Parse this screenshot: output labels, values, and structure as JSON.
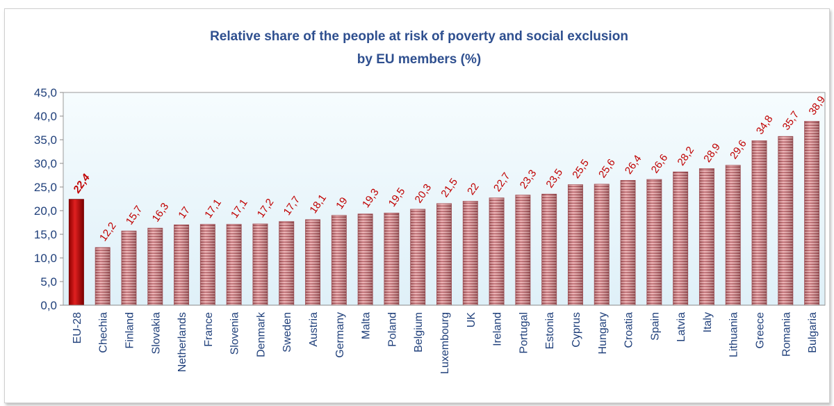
{
  "chart_data": {
    "type": "bar",
    "title_lines": [
      "Relative share of the people at risk of poverty and social exclusion",
      "by EU members (%)"
    ],
    "categories": [
      "EU-28",
      "Chechia",
      "Finland",
      "Slovakia",
      "Netherlands",
      "France",
      "Slovenia",
      "Denmark",
      "Sweden",
      "Austria",
      "Germany",
      "Malta",
      "Poland",
      "Belgium",
      "Luxembourg",
      "UK",
      "Ireland",
      "Portugal",
      "Estonia",
      "Cyprus",
      "Hungary",
      "Croatia",
      "Spain",
      "Latvia",
      "Italy",
      "Lithuania",
      "Greece",
      "Romania",
      "Bulgaria"
    ],
    "values": [
      22.4,
      12.2,
      15.7,
      16.3,
      17,
      17.1,
      17.1,
      17.2,
      17.7,
      18.1,
      19,
      19.3,
      19.5,
      20.3,
      21.5,
      22,
      22.7,
      23.3,
      23.5,
      25.5,
      25.6,
      26.4,
      26.6,
      28.2,
      28.9,
      29.6,
      34.8,
      35.7,
      38.9
    ],
    "data_labels": [
      "22,4",
      "12,2",
      "15,7",
      "16,3",
      "17",
      "17,1",
      "17,1",
      "17,2",
      "17,7",
      "18,1",
      "19",
      "19,3",
      "19,5",
      "20,3",
      "21,5",
      "22",
      "22,7",
      "23,3",
      "23,5",
      "25,5",
      "25,6",
      "26,4",
      "26,6",
      "28,2",
      "28,9",
      "29,6",
      "34,8",
      "35,7",
      "38,9"
    ],
    "highlight_category": "EU-28",
    "yticks": [
      "0,0",
      "5,0",
      "10,0",
      "15,0",
      "20,0",
      "25,0",
      "30,0",
      "35,0",
      "40,0",
      "45,0"
    ],
    "ylim": [
      0,
      45
    ],
    "ystep": 5,
    "grid": false,
    "legend": "none",
    "colors": {
      "bar": "#d9888c",
      "bar_stripe": "#a8434a",
      "highlight_bar": "#c00000",
      "plot_background": "#eaf6fb",
      "labels": "#c00000",
      "axis_text": "#1f3f7a",
      "title": "#2e4f8f"
    }
  }
}
